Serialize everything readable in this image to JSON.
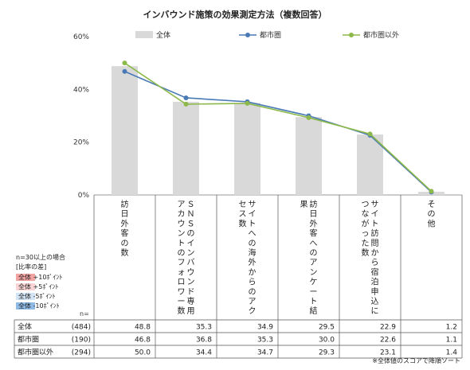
{
  "chart_data": {
    "type": "bar",
    "title": "インバウンド施策の効果測定方法（複数回答）",
    "categories": [
      "訪日外客の数",
      "ＳＮＳのインバウンド専用アカウントのフォロワー数",
      "サイトへの海外からのアクセス数",
      "訪日外客へのアンケート結果",
      "サイト訪問から宿泊申込につながった数",
      "その他"
    ],
    "y_ticks": [
      "0%",
      "20%",
      "40%",
      "60%"
    ],
    "ylim": [
      0,
      60
    ],
    "grid": false,
    "legend_position": "top",
    "series": [
      {
        "name": "全体",
        "kind": "bar",
        "n": "(484)",
        "color": "#d9d9d9",
        "values": [
          48.8,
          35.3,
          34.9,
          29.5,
          22.9,
          1.2
        ],
        "labels": [
          "48.8",
          "35.3",
          "34.9",
          "29.5",
          "22.9",
          "1.2"
        ]
      },
      {
        "name": "都市圏",
        "kind": "line",
        "n": "(190)",
        "color": "#4a7ab5",
        "values": [
          46.8,
          36.8,
          35.3,
          30.0,
          22.6,
          1.1
        ],
        "labels": [
          "46.8",
          "36.8",
          "35.3",
          "30.0",
          "22.6",
          "1.1"
        ]
      },
      {
        "name": "都市圏以外",
        "kind": "line",
        "n": "(294)",
        "color": "#8db94a",
        "values": [
          50.0,
          34.4,
          34.7,
          29.3,
          23.1,
          1.4
        ],
        "labels": [
          "50.0",
          "34.4",
          "34.7",
          "29.3",
          "23.1",
          "1.4"
        ]
      }
    ]
  },
  "table": {
    "n_header": "n="
  },
  "scale_legend": {
    "caption": "n=30以上の場合",
    "subcaption": "[比率の差]",
    "items": [
      {
        "label": "全体 +10ﾎﾟｲﾝﾄ",
        "color": "#f4a3a3"
      },
      {
        "label": "全体  +5ﾎﾟｲﾝﾄ",
        "color": "#fbd5d5"
      },
      {
        "label": "全体  -5ﾎﾟｲﾝﾄ",
        "color": "#d3e4f5"
      },
      {
        "label": "全体 -10ﾎﾟｲﾝﾄ",
        "color": "#8fbbe6"
      }
    ]
  },
  "note": "※全体値のスコアで降順ソート"
}
